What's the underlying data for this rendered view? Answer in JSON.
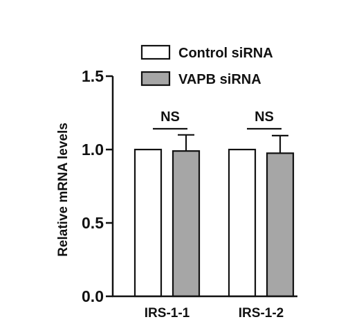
{
  "chart_data": {
    "type": "bar",
    "categories": [
      "IRS-1-1",
      "IRS-1-2"
    ],
    "series": [
      {
        "name": "Control siRNA",
        "values": [
          1.0,
          1.0
        ],
        "color": "#ffffff"
      },
      {
        "name": "VAPB siRNA",
        "values": [
          0.99,
          0.975
        ],
        "errors": [
          0.11,
          0.12
        ],
        "color": "#a6a6a6"
      }
    ],
    "ylabel": "Relative mRNA levels",
    "ylim": [
      0,
      1.5
    ],
    "yticks": [
      0.0,
      0.5,
      1.0,
      1.5
    ],
    "ytick_labels": [
      "0.0",
      "0.5",
      "1.0",
      "1.5"
    ],
    "annotations": [
      {
        "category": "IRS-1-1",
        "text": "NS"
      },
      {
        "category": "IRS-1-2",
        "text": "NS"
      }
    ],
    "legend_position": "top-right",
    "grid": false
  }
}
